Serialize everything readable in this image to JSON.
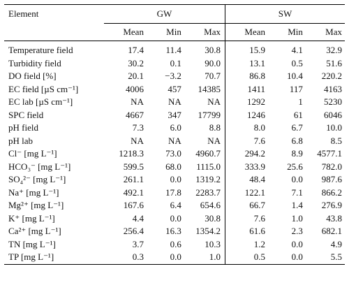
{
  "headers": {
    "element": "Element",
    "gw": "GW",
    "sw": "SW",
    "gw_cols": [
      "Mean",
      "Min",
      "Max"
    ],
    "sw_cols": [
      "Mean",
      "Min",
      "Max"
    ]
  },
  "rows": [
    {
      "element": "Temperature field",
      "gw": [
        "17.4",
        "11.4",
        "30.8"
      ],
      "sw": [
        "15.9",
        "4.1",
        "32.9"
      ]
    },
    {
      "element": "Turbidity field",
      "gw": [
        "30.2",
        "0.1",
        "90.0"
      ],
      "sw": [
        "13.1",
        "0.5",
        "51.6"
      ]
    },
    {
      "element": "DO field [%]",
      "gw": [
        "20.1",
        "−3.2",
        "70.7"
      ],
      "sw": [
        "86.8",
        "10.4",
        "220.2"
      ]
    },
    {
      "element": "EC field [µS cm⁻¹]",
      "gw": [
        "4006",
        "457",
        "14385"
      ],
      "sw": [
        "1411",
        "117",
        "4163"
      ]
    },
    {
      "element": "EC lab [µS cm⁻¹]",
      "gw": [
        "NA",
        "NA",
        "NA"
      ],
      "sw": [
        "1292",
        "1",
        "5230"
      ]
    },
    {
      "element": "SPC field",
      "gw": [
        "4667",
        "347",
        "17799"
      ],
      "sw": [
        "1246",
        "61",
        "6046"
      ]
    },
    {
      "element": "pH field",
      "gw": [
        "7.3",
        "6.0",
        "8.8"
      ],
      "sw": [
        "8.0",
        "6.7",
        "10.0"
      ]
    },
    {
      "element": "pH lab",
      "gw": [
        "NA",
        "NA",
        "NA"
      ],
      "sw": [
        "7.6",
        "6.8",
        "8.5"
      ]
    },
    {
      "element": "Cl⁻ [mg L⁻¹]",
      "gw": [
        "1218.3",
        "73.0",
        "4960.7"
      ],
      "sw": [
        "294.2",
        "8.9",
        "4577.1"
      ]
    },
    {
      "element": "HCO₃⁻ [mg L⁻¹]",
      "gw": [
        "599.5",
        "68.0",
        "1115.0"
      ],
      "sw": [
        "333.9",
        "25.6",
        "782.0"
      ]
    },
    {
      "element": "SO₄²⁻ [mg L⁻¹]",
      "gw": [
        "261.1",
        "0.0",
        "1319.2"
      ],
      "sw": [
        "48.4",
        "0.0",
        "987.6"
      ]
    },
    {
      "element": "Na⁺ [mg L⁻¹]",
      "gw": [
        "492.1",
        "17.8",
        "2283.7"
      ],
      "sw": [
        "122.1",
        "7.1",
        "866.2"
      ]
    },
    {
      "element": "Mg²⁺ [mg L⁻¹]",
      "gw": [
        "167.6",
        "6.4",
        "654.6"
      ],
      "sw": [
        "66.7",
        "1.4",
        "276.9"
      ]
    },
    {
      "element": "K⁺ [mg L⁻¹]",
      "gw": [
        "4.4",
        "0.0",
        "30.8"
      ],
      "sw": [
        "7.6",
        "1.0",
        "43.8"
      ]
    },
    {
      "element": "Ca²⁺ [mg L⁻¹]",
      "gw": [
        "256.4",
        "16.3",
        "1354.2"
      ],
      "sw": [
        "61.6",
        "2.3",
        "682.1"
      ]
    },
    {
      "element": "TN [mg L⁻¹]",
      "gw": [
        "3.7",
        "0.6",
        "10.3"
      ],
      "sw": [
        "1.2",
        "0.0",
        "4.9"
      ]
    },
    {
      "element": "TP [mg L⁻¹]",
      "gw": [
        "0.3",
        "0.0",
        "1.0"
      ],
      "sw": [
        "0.5",
        "0.0",
        "5.5"
      ]
    }
  ]
}
